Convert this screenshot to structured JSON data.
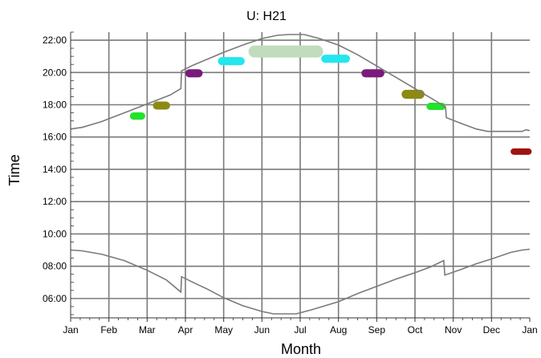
{
  "chart_data": {
    "type": "scatter",
    "title": "U: H21",
    "xlabel": "Month",
    "ylabel": "Time",
    "x_tick_labels": [
      "Jan",
      "Feb",
      "Mar",
      "Apr",
      "May",
      "Jun",
      "Jul",
      "Aug",
      "Sep",
      "Oct",
      "Nov",
      "Dec",
      "Jan"
    ],
    "y_tick_labels": [
      "06:00",
      "08:00",
      "10:00",
      "12:00",
      "14:00",
      "16:00",
      "18:00",
      "20:00",
      "22:00"
    ],
    "y_ticks": [
      6,
      8,
      10,
      12,
      14,
      16,
      18,
      20,
      22
    ],
    "xlim": [
      0,
      12
    ],
    "ylim": [
      4.8,
      22.5
    ],
    "grid": true,
    "legend": "none",
    "colors": {
      "reference_line": "#7a7a7a",
      "grid": "#7a7a7a",
      "axis": "#333333"
    },
    "sunset_curve": [
      {
        "x": 0.0,
        "y": 16.5
      },
      {
        "x": 0.3,
        "y": 16.6
      },
      {
        "x": 0.8,
        "y": 16.95
      },
      {
        "x": 1.4,
        "y": 17.5
      },
      {
        "x": 2.0,
        "y": 18.05
      },
      {
        "x": 2.6,
        "y": 18.6
      },
      {
        "x": 2.88,
        "y": 19.0
      },
      {
        "x": 2.9,
        "y": 20.1
      },
      {
        "x": 3.2,
        "y": 20.45
      },
      {
        "x": 3.6,
        "y": 20.85
      },
      {
        "x": 4.0,
        "y": 21.25
      },
      {
        "x": 4.5,
        "y": 21.7
      },
      {
        "x": 5.0,
        "y": 22.1
      },
      {
        "x": 5.4,
        "y": 22.3
      },
      {
        "x": 5.7,
        "y": 22.35
      },
      {
        "x": 6.1,
        "y": 22.35
      },
      {
        "x": 6.5,
        "y": 22.1
      },
      {
        "x": 7.0,
        "y": 21.7
      },
      {
        "x": 7.5,
        "y": 21.1
      },
      {
        "x": 8.0,
        "y": 20.4
      },
      {
        "x": 8.5,
        "y": 19.7
      },
      {
        "x": 9.0,
        "y": 19.0
      },
      {
        "x": 9.5,
        "y": 18.3
      },
      {
        "x": 9.8,
        "y": 17.85
      },
      {
        "x": 9.82,
        "y": 17.2
      },
      {
        "x": 10.2,
        "y": 16.85
      },
      {
        "x": 10.6,
        "y": 16.5
      },
      {
        "x": 10.9,
        "y": 16.35
      },
      {
        "x": 11.8,
        "y": 16.35
      },
      {
        "x": 11.9,
        "y": 16.45
      },
      {
        "x": 12.0,
        "y": 16.4
      }
    ],
    "sunrise_curve": [
      {
        "x": 0.0,
        "y": 9.0
      },
      {
        "x": 0.3,
        "y": 8.95
      },
      {
        "x": 0.8,
        "y": 8.75
      },
      {
        "x": 1.4,
        "y": 8.35
      },
      {
        "x": 2.0,
        "y": 7.75
      },
      {
        "x": 2.5,
        "y": 7.15
      },
      {
        "x": 2.88,
        "y": 6.4
      },
      {
        "x": 2.9,
        "y": 7.35
      },
      {
        "x": 3.2,
        "y": 7.0
      },
      {
        "x": 3.6,
        "y": 6.55
      },
      {
        "x": 4.0,
        "y": 6.05
      },
      {
        "x": 4.5,
        "y": 5.55
      },
      {
        "x": 5.0,
        "y": 5.2
      },
      {
        "x": 5.3,
        "y": 5.05
      },
      {
        "x": 5.9,
        "y": 5.05
      },
      {
        "x": 6.3,
        "y": 5.3
      },
      {
        "x": 7.0,
        "y": 5.8
      },
      {
        "x": 7.5,
        "y": 6.3
      },
      {
        "x": 8.0,
        "y": 6.75
      },
      {
        "x": 8.5,
        "y": 7.2
      },
      {
        "x": 9.0,
        "y": 7.6
      },
      {
        "x": 9.4,
        "y": 7.95
      },
      {
        "x": 9.75,
        "y": 8.35
      },
      {
        "x": 9.78,
        "y": 7.45
      },
      {
        "x": 10.2,
        "y": 7.8
      },
      {
        "x": 10.6,
        "y": 8.15
      },
      {
        "x": 11.0,
        "y": 8.45
      },
      {
        "x": 11.5,
        "y": 8.85
      },
      {
        "x": 11.8,
        "y": 9.0
      },
      {
        "x": 12.0,
        "y": 9.05
      }
    ],
    "clusters": [
      {
        "x_start": 1.55,
        "x_end": 1.95,
        "y": 17.3,
        "thickness": 0.45,
        "color": "#22e22a"
      },
      {
        "x_start": 2.15,
        "x_end": 2.6,
        "y": 17.95,
        "thickness": 0.5,
        "color": "#8c8a12"
      },
      {
        "x_start": 3.0,
        "x_end": 3.45,
        "y": 19.95,
        "thickness": 0.5,
        "color": "#7a1a7a"
      },
      {
        "x_start": 3.85,
        "x_end": 4.55,
        "y": 20.7,
        "thickness": 0.5,
        "color": "#23e6ee"
      },
      {
        "x_start": 4.65,
        "x_end": 6.6,
        "y": 21.3,
        "thickness": 0.75,
        "color": "#c1dcbd"
      },
      {
        "x_start": 6.55,
        "x_end": 7.3,
        "y": 20.85,
        "thickness": 0.5,
        "color": "#23e6ee"
      },
      {
        "x_start": 7.6,
        "x_end": 8.2,
        "y": 19.95,
        "thickness": 0.5,
        "color": "#7a1a7a"
      },
      {
        "x_start": 8.65,
        "x_end": 9.25,
        "y": 18.65,
        "thickness": 0.55,
        "color": "#8c8a12"
      },
      {
        "x_start": 9.3,
        "x_end": 9.8,
        "y": 17.9,
        "thickness": 0.45,
        "color": "#22e22a"
      },
      {
        "x_start": 11.5,
        "x_end": 12.05,
        "y": 15.1,
        "thickness": 0.4,
        "color": "#a01212"
      }
    ]
  }
}
